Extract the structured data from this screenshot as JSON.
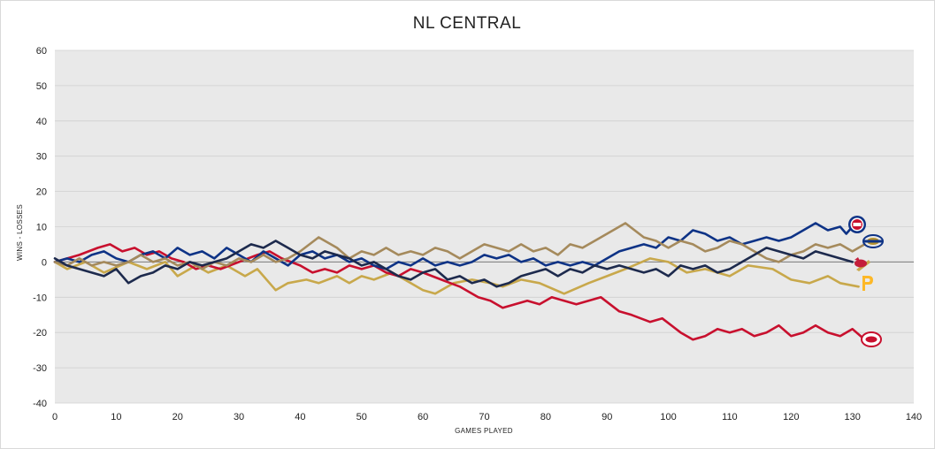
{
  "chart_data": {
    "type": "line",
    "title": "NL CENTRAL",
    "xlabel": "GAMES PLAYED",
    "ylabel": "WINS - LOSSES",
    "xlim": [
      0,
      140
    ],
    "ylim": [
      -40,
      60
    ],
    "xticks": [
      0,
      10,
      20,
      30,
      40,
      50,
      60,
      70,
      80,
      90,
      100,
      110,
      120,
      130,
      140
    ],
    "yticks": [
      60,
      50,
      40,
      30,
      20,
      10,
      0,
      -10,
      -20,
      -30,
      -40
    ],
    "grid": true,
    "background": "#e9e9e9",
    "series": [
      {
        "color": "#c8a84b",
        "logo": "pirates-logo",
        "x": [
          0,
          2,
          5,
          8,
          12,
          15,
          18,
          20,
          23,
          25,
          28,
          31,
          33,
          36,
          38,
          41,
          43,
          46,
          48,
          50,
          52,
          55,
          58,
          60,
          62,
          65,
          68,
          71,
          73,
          76,
          79,
          83,
          87,
          90,
          93,
          97,
          100,
          103,
          106,
          110,
          113,
          117,
          120,
          123,
          126,
          128,
          131
        ],
        "y": [
          0,
          -2,
          0,
          -3,
          0,
          -2,
          0,
          -4,
          -1,
          -3,
          -1,
          -4,
          -2,
          -8,
          -6,
          -5,
          -6,
          -4,
          -6,
          -4,
          -5,
          -3,
          -6,
          -8,
          -9,
          -6,
          -5,
          -6,
          -7,
          -5,
          -6,
          -9,
          -6,
          -4,
          -2,
          1,
          0,
          -3,
          -2,
          -4,
          -1,
          -2,
          -5,
          -6,
          -4,
          -6,
          -7
        ]
      },
      {
        "color": "#c8102e",
        "logo": "reds-logo",
        "x": [
          0,
          2,
          4,
          7,
          9,
          11,
          13,
          15,
          17,
          19,
          21,
          23,
          25,
          27,
          30,
          33,
          35,
          37,
          40,
          42,
          44,
          46,
          48,
          50,
          52,
          54,
          56,
          58,
          60,
          63,
          66,
          69,
          71,
          73,
          75,
          77,
          79,
          81,
          83,
          85,
          87,
          89,
          92,
          94,
          97,
          99,
          102,
          104,
          106,
          108,
          110,
          112,
          114,
          116,
          118,
          120,
          122,
          124,
          126,
          128,
          130,
          132
        ],
        "y": [
          0,
          1,
          2,
          4,
          5,
          3,
          4,
          2,
          3,
          1,
          0,
          -2,
          -1,
          -2,
          0,
          2,
          3,
          1,
          -1,
          -3,
          -2,
          -3,
          -1,
          -2,
          -1,
          -3,
          -4,
          -2,
          -3,
          -5,
          -7,
          -10,
          -11,
          -13,
          -12,
          -11,
          -12,
          -10,
          -11,
          -12,
          -11,
          -10,
          -14,
          -15,
          -17,
          -16,
          -20,
          -22,
          -21,
          -19,
          -20,
          -19,
          -21,
          -20,
          -18,
          -21,
          -20,
          -18,
          -20,
          -21,
          -19,
          -22
        ]
      },
      {
        "color": "#0e3386",
        "logo": "cubs-logo",
        "x": [
          0,
          2,
          4,
          6,
          8,
          10,
          12,
          14,
          16,
          18,
          20,
          22,
          24,
          26,
          28,
          30,
          32,
          34,
          36,
          38,
          40,
          42,
          44,
          46,
          48,
          50,
          52,
          54,
          56,
          58,
          60,
          62,
          64,
          66,
          68,
          70,
          72,
          74,
          76,
          78,
          80,
          82,
          84,
          86,
          88,
          90,
          92,
          94,
          96,
          98,
          100,
          102,
          104,
          106,
          108,
          110,
          112,
          114,
          116,
          118,
          120,
          122,
          124,
          126,
          128,
          129,
          130
        ],
        "y": [
          0,
          1,
          0,
          2,
          3,
          1,
          0,
          2,
          3,
          1,
          4,
          2,
          3,
          1,
          4,
          2,
          0,
          3,
          1,
          -1,
          2,
          3,
          1,
          2,
          0,
          1,
          -1,
          -2,
          0,
          -1,
          1,
          -1,
          0,
          -1,
          0,
          2,
          1,
          2,
          0,
          1,
          -1,
          0,
          -1,
          0,
          -1,
          1,
          3,
          4,
          5,
          4,
          7,
          6,
          9,
          8,
          6,
          7,
          5,
          6,
          7,
          6,
          7,
          9,
          11,
          9,
          10,
          8,
          10
        ]
      },
      {
        "color": "#a58a5c",
        "logo": "brewers-logo",
        "x": [
          0,
          2,
          4,
          6,
          8,
          10,
          12,
          14,
          16,
          18,
          20,
          22,
          24,
          26,
          28,
          30,
          32,
          34,
          36,
          38,
          40,
          43,
          46,
          48,
          50,
          52,
          54,
          56,
          58,
          60,
          62,
          64,
          66,
          68,
          70,
          72,
          74,
          76,
          78,
          80,
          82,
          84,
          86,
          88,
          90,
          93,
          96,
          98,
          100,
          102,
          104,
          106,
          108,
          110,
          112,
          114,
          116,
          118,
          120,
          122,
          124,
          126,
          128,
          130,
          132
        ],
        "y": [
          0,
          -1,
          1,
          -1,
          0,
          -1,
          0,
          2,
          0,
          1,
          -1,
          0,
          -2,
          0,
          -1,
          1,
          0,
          2,
          0,
          1,
          3,
          7,
          4,
          1,
          3,
          2,
          4,
          2,
          3,
          2,
          4,
          3,
          1,
          3,
          5,
          4,
          3,
          5,
          3,
          4,
          2,
          5,
          4,
          6,
          8,
          11,
          7,
          6,
          4,
          6,
          5,
          3,
          4,
          6,
          5,
          3,
          1,
          0,
          2,
          3,
          5,
          4,
          5,
          3,
          5
        ]
      },
      {
        "color": "#1d2a4d",
        "logo": "cardinals-logo",
        "x": [
          0,
          2,
          4,
          6,
          8,
          10,
          12,
          14,
          16,
          18,
          20,
          22,
          24,
          26,
          28,
          30,
          32,
          34,
          36,
          38,
          40,
          42,
          44,
          46,
          48,
          50,
          52,
          54,
          56,
          58,
          60,
          62,
          64,
          66,
          68,
          70,
          72,
          74,
          76,
          78,
          80,
          82,
          84,
          86,
          88,
          90,
          92,
          94,
          96,
          98,
          100,
          102,
          104,
          106,
          108,
          110,
          112,
          114,
          116,
          118,
          120,
          122,
          124,
          126,
          128,
          130
        ],
        "y": [
          1,
          -1,
          -2,
          -3,
          -4,
          -2,
          -6,
          -4,
          -3,
          -1,
          -2,
          0,
          -1,
          0,
          1,
          3,
          5,
          4,
          6,
          4,
          2,
          1,
          3,
          2,
          1,
          -1,
          0,
          -2,
          -4,
          -5,
          -3,
          -2,
          -5,
          -4,
          -6,
          -5,
          -7,
          -6,
          -4,
          -3,
          -2,
          -4,
          -2,
          -3,
          -1,
          -2,
          -1,
          -2,
          -3,
          -2,
          -4,
          -1,
          -2,
          -1,
          -3,
          -2,
          0,
          2,
          4,
          3,
          2,
          1,
          3,
          2,
          1,
          0
        ]
      }
    ]
  }
}
